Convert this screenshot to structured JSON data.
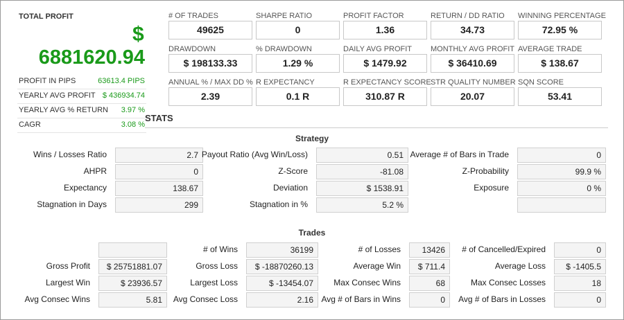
{
  "left": {
    "title": "TOTAL PROFIT",
    "currency": "$",
    "value": "6881620.94",
    "rows": [
      [
        "PROFIT IN PIPS",
        "63613.4 PIPS"
      ],
      [
        "YEARLY AVG PROFIT",
        "$ 436934.74"
      ],
      [
        "YEARLY AVG % RETURN",
        "3.97 %"
      ],
      [
        "CAGR",
        "3.08 %"
      ]
    ]
  },
  "metrics": [
    [
      "# OF TRADES",
      "49625"
    ],
    [
      "SHARPE RATIO",
      "0"
    ],
    [
      "PROFIT FACTOR",
      "1.36"
    ],
    [
      "RETURN / DD RATIO",
      "34.73"
    ],
    [
      "WINNING PERCENTAGE",
      "72.95 %"
    ],
    [
      "DRAWDOWN",
      "$ 198133.33"
    ],
    [
      "% DRAWDOWN",
      "1.29 %"
    ],
    [
      "DAILY AVG PROFIT",
      "$ 1479.92"
    ],
    [
      "MONTHLY AVG PROFIT",
      "$ 36410.69"
    ],
    [
      "AVERAGE TRADE",
      "$ 138.67"
    ],
    [
      "ANNUAL % / MAX DD %",
      "2.39"
    ],
    [
      "R EXPECTANCY",
      "0.1 R"
    ],
    [
      "R EXPECTANCY SCORE",
      "310.87 R"
    ],
    [
      "STR QUALITY NUMBER",
      "20.07"
    ],
    [
      "SQN SCORE",
      "53.41"
    ]
  ],
  "stats_title": "STATS",
  "strategy": {
    "title": "Strategy",
    "rows": [
      [
        [
          "Wins / Losses Ratio",
          "2.7"
        ],
        [
          "Payout Ratio (Avg Win/Loss)",
          "0.51"
        ],
        [
          "Average # of Bars in Trade",
          "0"
        ]
      ],
      [
        [
          "AHPR",
          "0"
        ],
        [
          "Z-Score",
          "-81.08"
        ],
        [
          "Z-Probability",
          "99.9 %"
        ]
      ],
      [
        [
          "Expectancy",
          "138.67"
        ],
        [
          "Deviation",
          "$ 1538.91"
        ],
        [
          "Exposure",
          "0 %"
        ]
      ],
      [
        [
          "Stagnation in Days",
          "299"
        ],
        [
          "Stagnation in %",
          "5.2 %"
        ],
        null
      ]
    ]
  },
  "trades": {
    "title": "Trades",
    "rows": [
      [
        null,
        [
          "# of Wins",
          "36199"
        ],
        [
          "# of Losses",
          "13426"
        ],
        [
          "# of Cancelled/Expired",
          "0"
        ]
      ],
      [
        [
          "Gross Profit",
          "$ 25751881.07"
        ],
        [
          "Gross Loss",
          "$ -18870260.13"
        ],
        [
          "Average Win",
          "$ 711.4"
        ],
        [
          "Average Loss",
          "$ -1405.5"
        ]
      ],
      [
        [
          "Largest Win",
          "$ 23936.57"
        ],
        [
          "Largest Loss",
          "$ -13454.07"
        ],
        [
          "Max Consec Wins",
          "68"
        ],
        [
          "Max Consec Losses",
          "18"
        ]
      ],
      [
        [
          "Avg Consec Wins",
          "5.81"
        ],
        [
          "Avg Consec Loss",
          "2.16"
        ],
        [
          "Avg # of Bars in Wins",
          "0"
        ],
        [
          "Avg # of Bars in Losses",
          "0"
        ]
      ]
    ]
  }
}
